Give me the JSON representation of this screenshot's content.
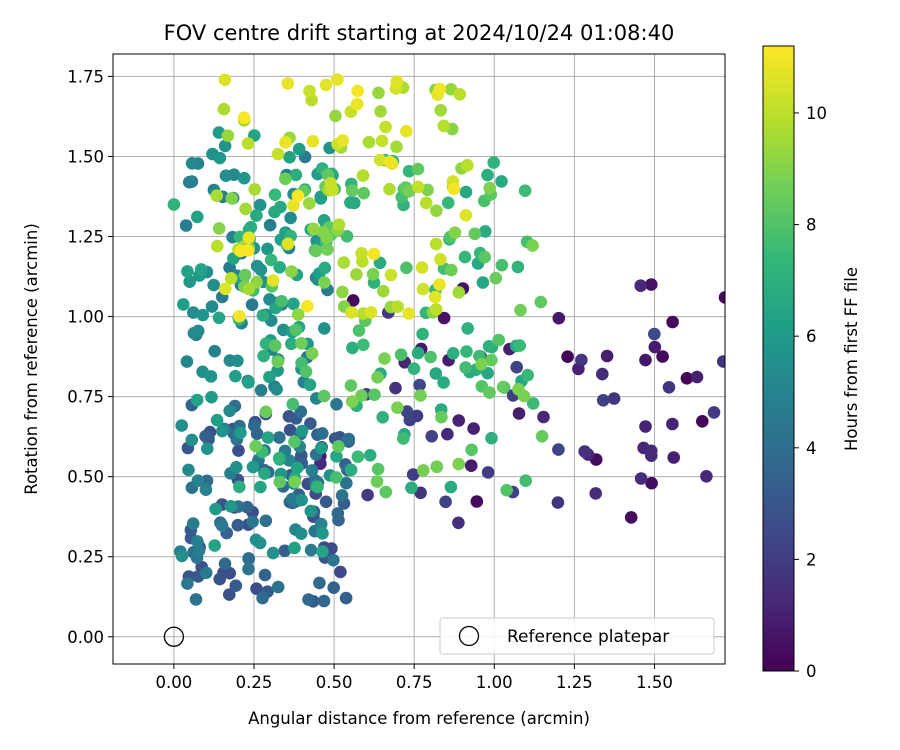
{
  "chart_data": {
    "type": "scatter",
    "title": "FOV centre drift starting at 2024/10/24 01:08:40",
    "xlabel": "Angular distance from reference (arcmin)",
    "ylabel": "Rotation from reference (arcmin)",
    "xlim": [
      -0.19,
      1.72
    ],
    "ylim": [
      -0.085,
      1.82
    ],
    "xticks": [
      "0.00",
      "0.25",
      "0.50",
      "0.75",
      "1.00",
      "1.25",
      "1.50"
    ],
    "yticks": [
      "0.00",
      "0.25",
      "0.50",
      "0.75",
      "1.00",
      "1.25",
      "1.50",
      "1.75"
    ],
    "grid": true,
    "legend": {
      "placement": "lower-right",
      "entries": [
        "Reference platepar"
      ]
    },
    "reference_point": {
      "x": 0.0,
      "y": 0.0,
      "label": "Reference platepar"
    },
    "colorbar": {
      "label": "Hours from first FF file",
      "colormap": "viridis",
      "range": [
        0,
        11.2
      ],
      "ticks": [
        "0",
        "2",
        "4",
        "6",
        "8",
        "10"
      ]
    },
    "colormap_stops": [
      "#440154",
      "#482878",
      "#3e4989",
      "#31688e",
      "#26828e",
      "#1f9e89",
      "#35b779",
      "#6ece58",
      "#b5de2b",
      "#fde725"
    ],
    "series_clusters": [
      {
        "name_hint": "hours 0-2.5",
        "count": 70,
        "x_range": [
          0.45,
          1.72
        ],
        "y_range": [
          0.35,
          1.1
        ],
        "h_range": [
          0.0,
          2.5
        ]
      },
      {
        "name_hint": "hours 2.5-4.5",
        "count": 110,
        "x_range": [
          0.04,
          0.55
        ],
        "y_range": [
          0.1,
          0.75
        ],
        "h_range": [
          2.5,
          4.5
        ]
      },
      {
        "name_hint": "hours 4.5-6.5",
        "count": 160,
        "x_range": [
          0.02,
          0.5
        ],
        "y_range": [
          0.25,
          1.58
        ],
        "h_range": [
          4.5,
          6.6
        ]
      },
      {
        "name_hint": "hours 6.5-9",
        "count": 180,
        "x_range": [
          0.2,
          1.15
        ],
        "y_range": [
          0.45,
          1.5
        ],
        "h_range": [
          6.6,
          9.0
        ]
      },
      {
        "name_hint": "hours 9-11.2",
        "count": 110,
        "x_range": [
          0.12,
          0.92
        ],
        "y_range": [
          1.0,
          1.75
        ],
        "h_range": [
          9.0,
          11.2
        ]
      }
    ],
    "outliers": [
      {
        "x": 1.72,
        "y": 1.06,
        "hours": 0.3
      },
      {
        "x": 1.49,
        "y": 1.1,
        "hours": 0.5
      },
      {
        "x": 0.0,
        "y": 1.35,
        "hours": 7.2
      },
      {
        "x": 0.83,
        "y": 1.71,
        "hours": 11.0
      },
      {
        "x": 0.51,
        "y": 1.74,
        "hours": 10.8
      },
      {
        "x": 1.56,
        "y": 0.56,
        "hours": 1.0
      }
    ]
  }
}
